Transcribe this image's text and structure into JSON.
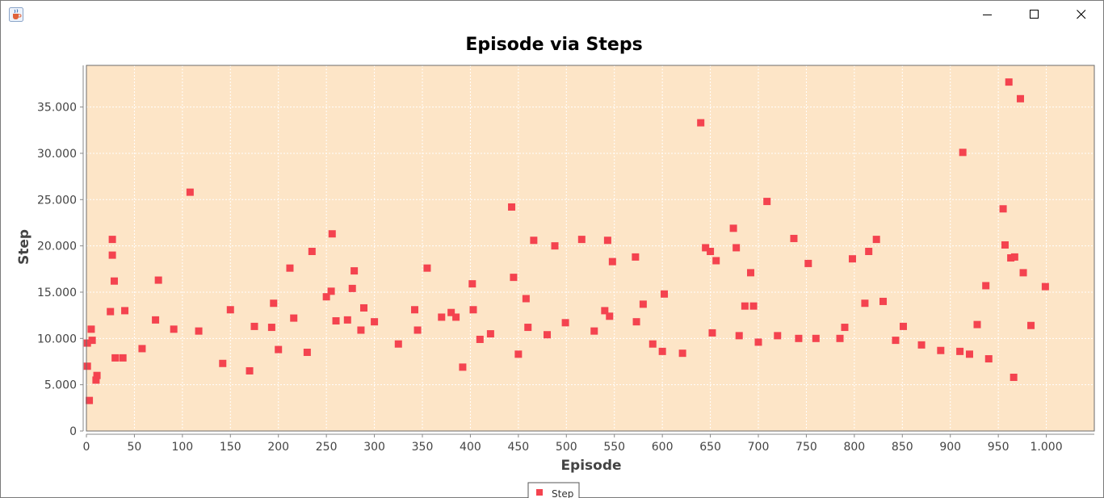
{
  "window": {
    "icons": {
      "app": "java-cup-icon",
      "minimize": "minimize-icon",
      "maximize": "maximize-icon",
      "close": "close-icon"
    }
  },
  "chart_data": {
    "type": "scatter",
    "title": "Episode via Steps",
    "xlabel": "Episode",
    "ylabel": "Step",
    "xlim": [
      0,
      1050
    ],
    "ylim": [
      0,
      39500
    ],
    "xticks": [
      0,
      50,
      100,
      150,
      200,
      250,
      300,
      350,
      400,
      450,
      500,
      550,
      600,
      650,
      700,
      750,
      800,
      850,
      900,
      950,
      1000
    ],
    "xtick_labels": [
      "0",
      "50",
      "100",
      "150",
      "200",
      "250",
      "300",
      "350",
      "400",
      "450",
      "500",
      "550",
      "600",
      "650",
      "700",
      "750",
      "800",
      "850",
      "900",
      "950",
      "1.000"
    ],
    "yticks": [
      0,
      5000,
      10000,
      15000,
      20000,
      25000,
      30000,
      35000
    ],
    "ytick_labels": [
      "0",
      "5.000",
      "10.000",
      "15.000",
      "20.000",
      "25.000",
      "30.000",
      "35.000"
    ],
    "grid": true,
    "background": "#fde5c7",
    "legend": {
      "position": "bottom-center",
      "entries": [
        "Step"
      ]
    },
    "series": [
      {
        "name": "Step",
        "color": "#f4434f",
        "points": [
          [
            1,
            7000
          ],
          [
            1,
            9500
          ],
          [
            3,
            3300
          ],
          [
            5,
            11000
          ],
          [
            6,
            9800
          ],
          [
            10,
            5500
          ],
          [
            11,
            6000
          ],
          [
            25,
            12900
          ],
          [
            27,
            20700
          ],
          [
            27,
            19000
          ],
          [
            29,
            16200
          ],
          [
            40,
            13000
          ],
          [
            75,
            16300
          ],
          [
            108,
            25800
          ],
          [
            175,
            11300
          ],
          [
            193,
            11200
          ],
          [
            195,
            13800
          ],
          [
            212,
            17600
          ],
          [
            235,
            19400
          ],
          [
            250,
            14500
          ],
          [
            255,
            15100
          ],
          [
            256,
            21300
          ],
          [
            277,
            15400
          ],
          [
            279,
            17300
          ],
          [
            289,
            13300
          ],
          [
            342,
            13100
          ],
          [
            355,
            17600
          ],
          [
            380,
            12800
          ],
          [
            402,
            15900
          ],
          [
            403,
            13100
          ],
          [
            443,
            24200
          ],
          [
            445,
            16600
          ],
          [
            458,
            14300
          ],
          [
            466,
            20600
          ],
          [
            488,
            20000
          ],
          [
            516,
            20700
          ],
          [
            543,
            20600
          ],
          [
            548,
            18300
          ],
          [
            572,
            18800
          ],
          [
            580,
            13700
          ],
          [
            602,
            14800
          ],
          [
            640,
            33300
          ],
          [
            645,
            19800
          ],
          [
            650,
            19400
          ],
          [
            656,
            18400
          ],
          [
            674,
            21900
          ],
          [
            677,
            19800
          ],
          [
            686,
            13500
          ],
          [
            692,
            17100
          ],
          [
            695,
            13500
          ],
          [
            709,
            24800
          ],
          [
            737,
            20800
          ],
          [
            752,
            18100
          ],
          [
            798,
            18600
          ],
          [
            811,
            13800
          ],
          [
            815,
            19400
          ],
          [
            823,
            20700
          ],
          [
            830,
            14000
          ],
          [
            913,
            30100
          ],
          [
            928,
            11500
          ],
          [
            937,
            15700
          ],
          [
            955,
            24000
          ],
          [
            957,
            20100
          ],
          [
            961,
            37700
          ],
          [
            973,
            35900
          ],
          [
            976,
            17100
          ],
          [
            984,
            11400
          ],
          [
            999,
            15600
          ],
          [
            963,
            18700
          ],
          [
            967,
            18800
          ],
          [
            966,
            5800
          ],
          [
            940,
            7800
          ],
          [
            920,
            8300
          ],
          [
            910,
            8600
          ],
          [
            890,
            8700
          ],
          [
            870,
            9300
          ],
          [
            851,
            11300
          ],
          [
            843,
            9800
          ],
          [
            790,
            11200
          ],
          [
            785,
            10000
          ],
          [
            760,
            10000
          ],
          [
            742,
            10000
          ],
          [
            720,
            10300
          ],
          [
            700,
            9600
          ],
          [
            680,
            10300
          ],
          [
            652,
            10600
          ],
          [
            621,
            8400
          ],
          [
            600,
            8600
          ],
          [
            590,
            9400
          ],
          [
            573,
            11800
          ],
          [
            540,
            13000
          ],
          [
            545,
            12400
          ],
          [
            529,
            10800
          ],
          [
            499,
            11700
          ],
          [
            480,
            10400
          ],
          [
            460,
            11200
          ],
          [
            450,
            8300
          ],
          [
            421,
            10500
          ],
          [
            410,
            9900
          ],
          [
            392,
            6900
          ],
          [
            385,
            12300
          ],
          [
            370,
            12300
          ],
          [
            345,
            10900
          ],
          [
            325,
            9400
          ],
          [
            300,
            11800
          ],
          [
            286,
            10900
          ],
          [
            272,
            12000
          ],
          [
            260,
            11900
          ],
          [
            230,
            8500
          ],
          [
            216,
            12200
          ],
          [
            200,
            8800
          ],
          [
            170,
            6500
          ],
          [
            150,
            13100
          ],
          [
            142,
            7300
          ],
          [
            117,
            10800
          ],
          [
            91,
            11000
          ],
          [
            72,
            12000
          ],
          [
            58,
            8900
          ],
          [
            38,
            7900
          ],
          [
            30,
            7900
          ]
        ]
      }
    ]
  }
}
